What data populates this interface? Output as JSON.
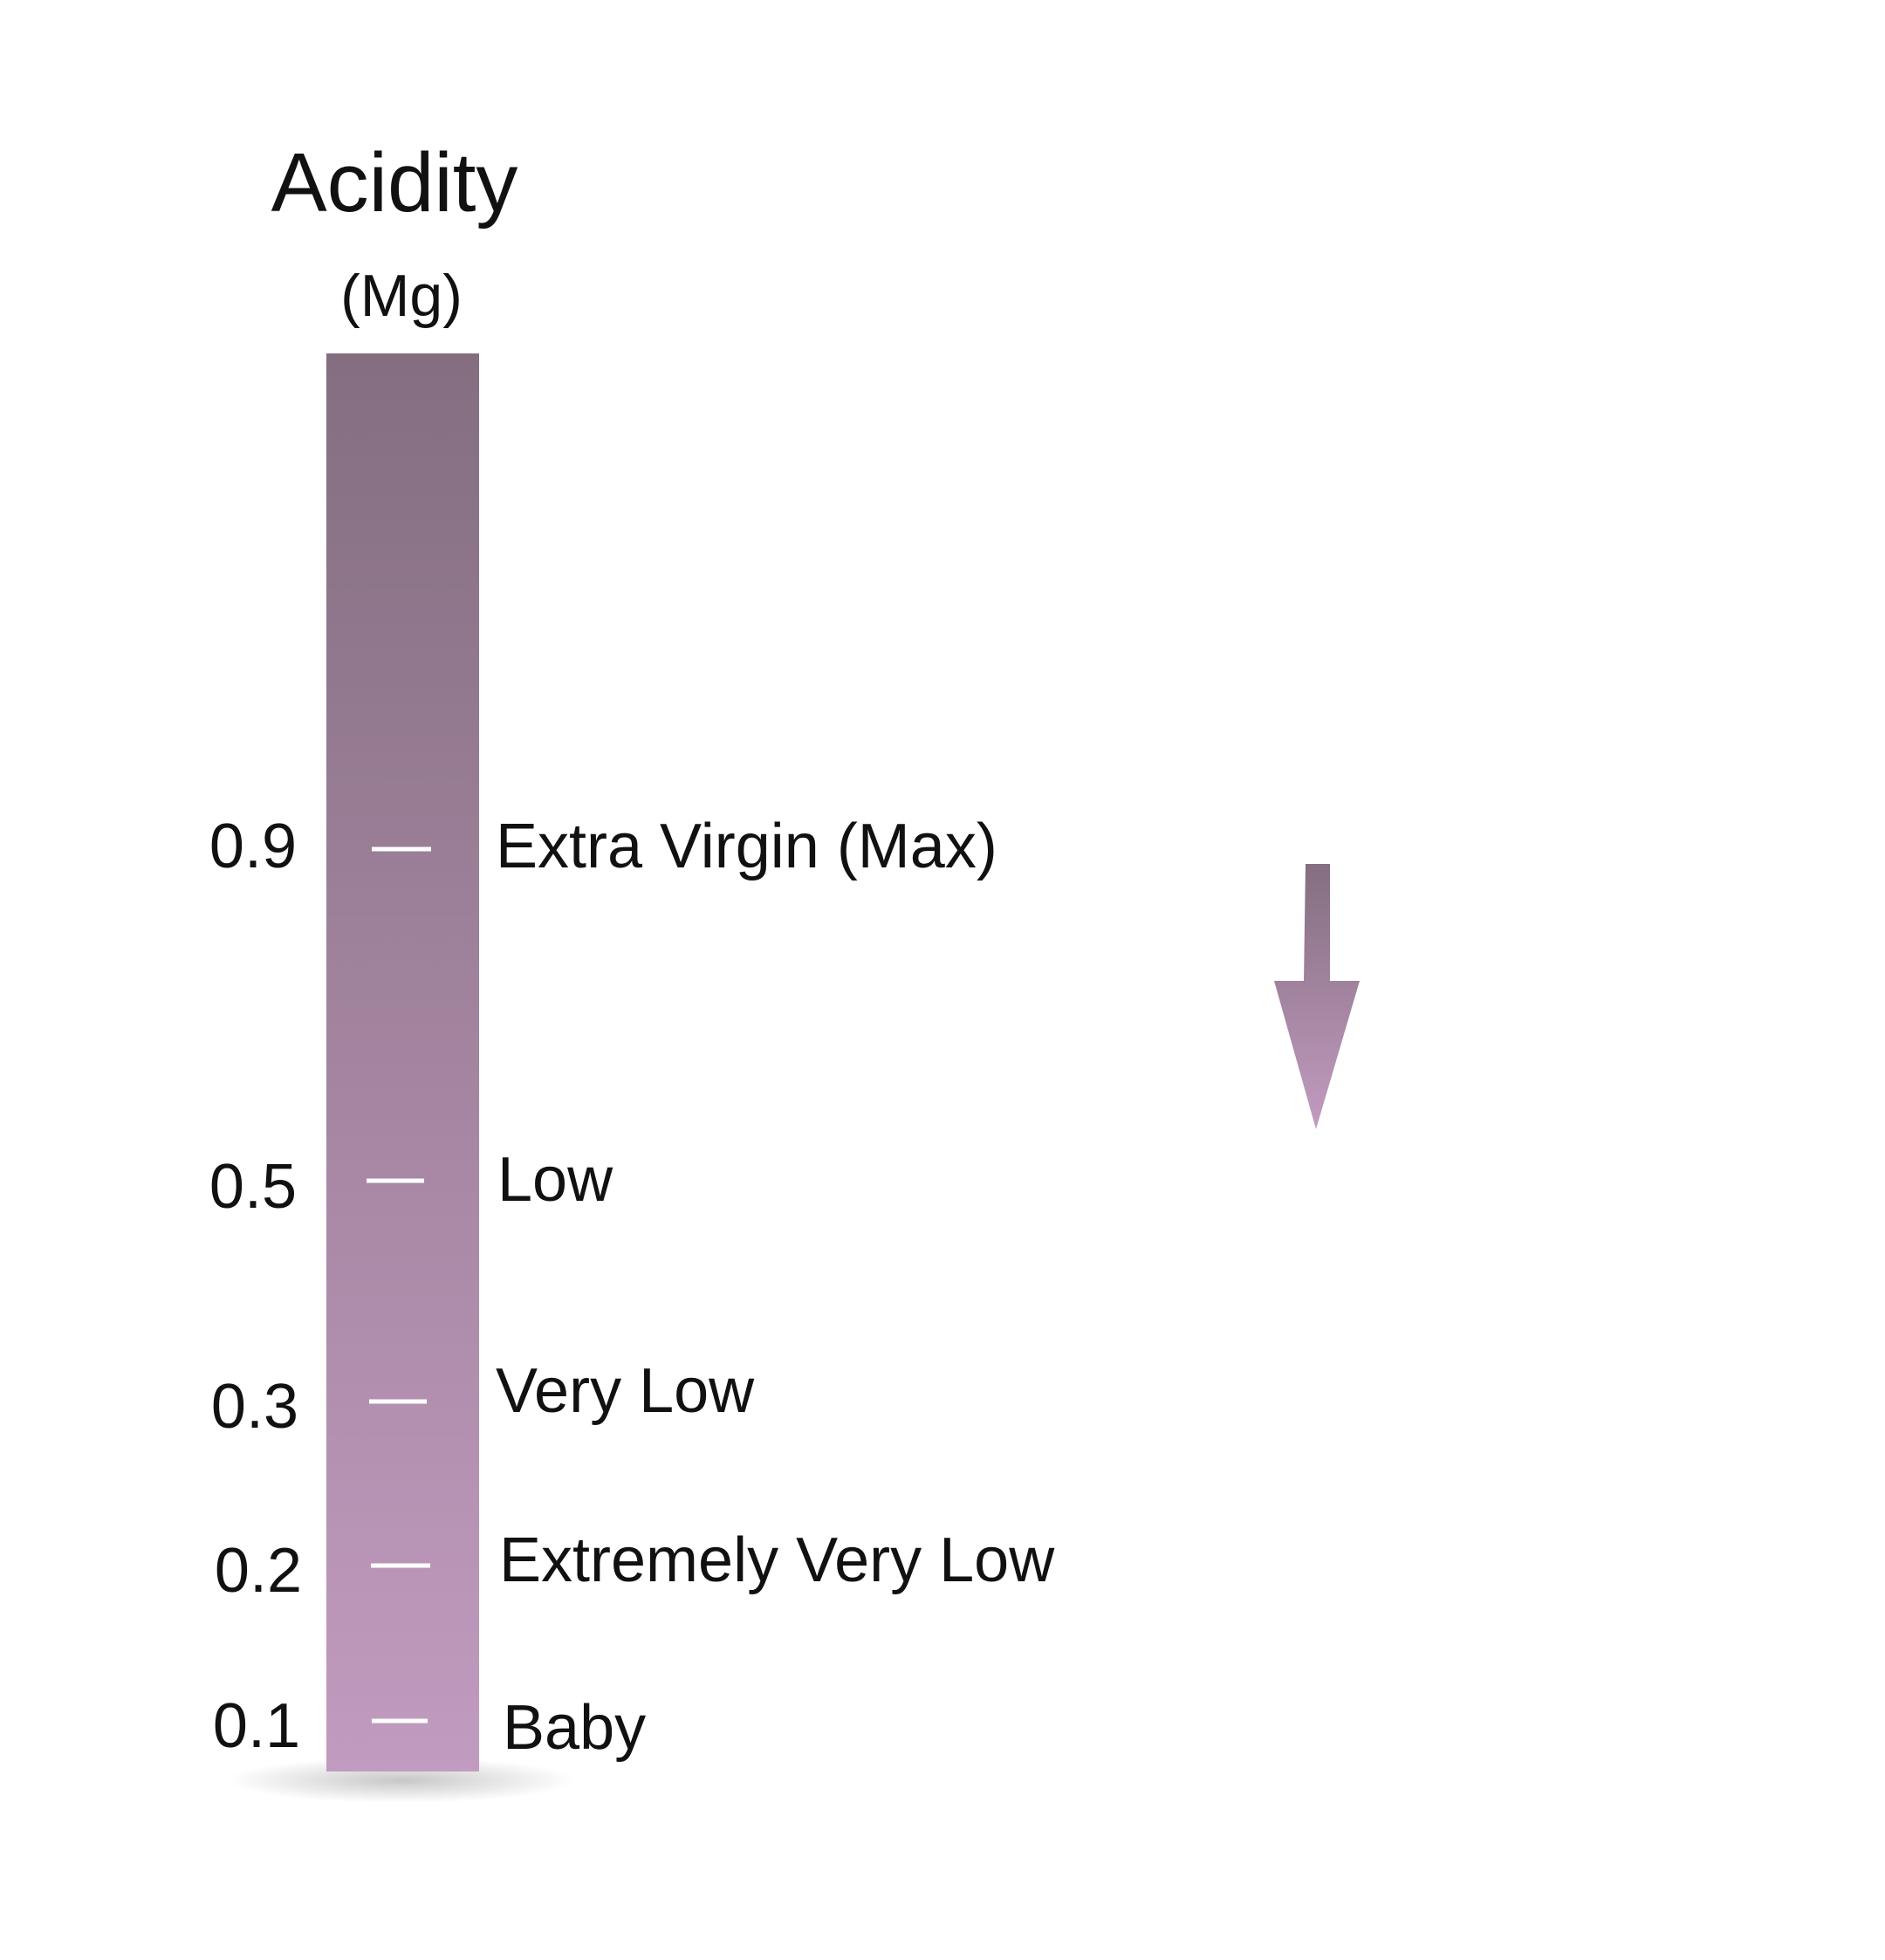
{
  "title": "Acidity",
  "unit": "(Mg)",
  "colors": {
    "bar_top": "#846e80",
    "bar_bottom": "#c29bc0",
    "tick_mark": "#ffffff",
    "arrow_top": "#846e80",
    "arrow_bottom": "#c29bc0",
    "text": "#111111"
  },
  "levels": [
    {
      "value": "0.9",
      "label": "Extra Virgin (Max)"
    },
    {
      "value": "0.5",
      "label": "Low"
    },
    {
      "value": "0.3",
      "label": "Very Low"
    },
    {
      "value": "0.2",
      "label": "Extremely Very Low"
    },
    {
      "value": "0.1",
      "label": "Baby"
    }
  ],
  "arrow": {
    "icon": "arrow-down-icon",
    "direction": "down"
  }
}
